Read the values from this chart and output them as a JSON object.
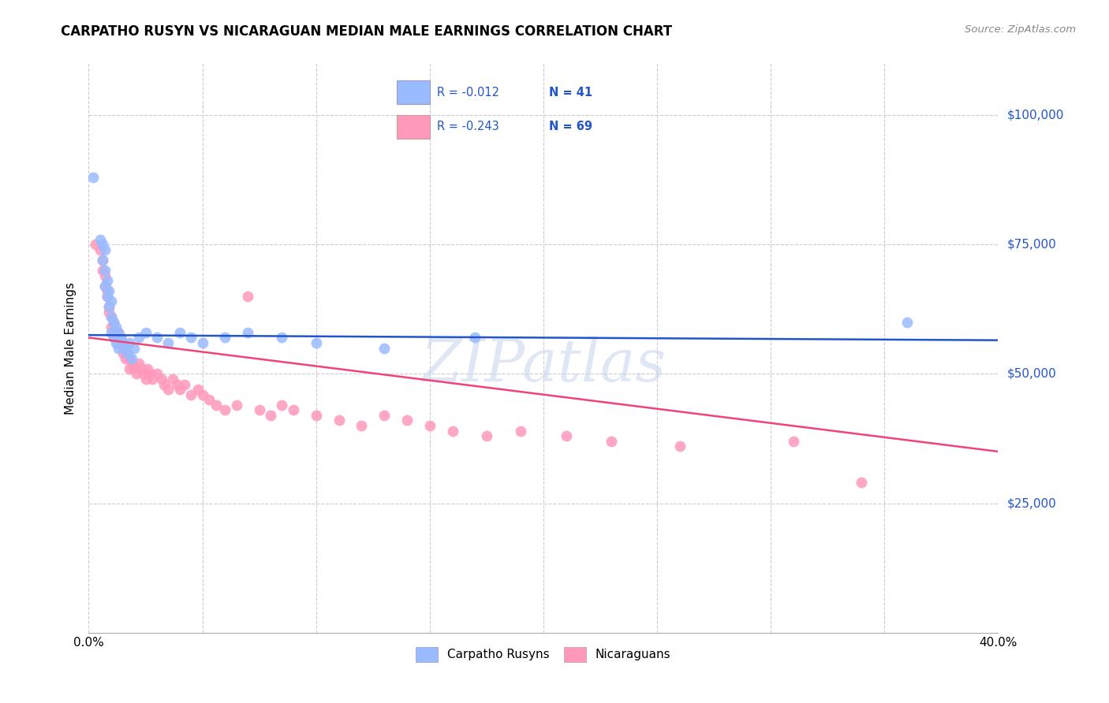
{
  "title": "CARPATHO RUSYN VS NICARAGUAN MEDIAN MALE EARNINGS CORRELATION CHART",
  "source": "Source: ZipAtlas.com",
  "ylabel": "Median Male Earnings",
  "legend_label1": "Carpatho Rusyns",
  "legend_label2": "Nicaraguans",
  "legend_r1": "R = -0.012",
  "legend_n1": "N = 41",
  "legend_r2": "R = -0.243",
  "legend_n2": "N = 69",
  "color_blue": "#99BBFF",
  "color_pink": "#FF99BB",
  "line_blue": "#2255CC",
  "line_pink": "#EE4477",
  "watermark": "ZIPatlas",
  "xmin": 0.0,
  "xmax": 0.4,
  "ymin": 0,
  "ymax": 110000,
  "ytick_vals": [
    25000,
    50000,
    75000,
    100000
  ],
  "ytick_labels": [
    "$25,000",
    "$50,000",
    "$75,000",
    "$100,000"
  ],
  "xtick_vals": [
    0.0,
    0.05,
    0.1,
    0.15,
    0.2,
    0.25,
    0.3,
    0.35,
    0.4
  ],
  "carpatho_x": [
    0.002,
    0.005,
    0.006,
    0.006,
    0.007,
    0.007,
    0.007,
    0.008,
    0.008,
    0.009,
    0.009,
    0.01,
    0.01,
    0.01,
    0.011,
    0.011,
    0.012,
    0.012,
    0.013,
    0.013,
    0.014,
    0.015,
    0.016,
    0.017,
    0.018,
    0.019,
    0.02,
    0.022,
    0.025,
    0.03,
    0.035,
    0.04,
    0.045,
    0.05,
    0.06,
    0.07,
    0.085,
    0.1,
    0.13,
    0.17,
    0.36
  ],
  "carpatho_y": [
    88000,
    76000,
    75000,
    72000,
    74000,
    70000,
    67000,
    68000,
    65000,
    66000,
    63000,
    64000,
    61000,
    58000,
    60000,
    57000,
    59000,
    56000,
    58000,
    55000,
    57000,
    56000,
    55000,
    54000,
    56000,
    53000,
    55000,
    57000,
    58000,
    57000,
    56000,
    58000,
    57000,
    56000,
    57000,
    58000,
    57000,
    56000,
    55000,
    57000,
    60000
  ],
  "nicaraguan_x": [
    0.003,
    0.005,
    0.006,
    0.006,
    0.007,
    0.007,
    0.008,
    0.008,
    0.009,
    0.009,
    0.01,
    0.01,
    0.011,
    0.011,
    0.012,
    0.013,
    0.013,
    0.014,
    0.015,
    0.015,
    0.016,
    0.016,
    0.017,
    0.018,
    0.018,
    0.019,
    0.02,
    0.021,
    0.022,
    0.023,
    0.024,
    0.025,
    0.026,
    0.027,
    0.028,
    0.03,
    0.032,
    0.033,
    0.035,
    0.037,
    0.039,
    0.04,
    0.042,
    0.045,
    0.048,
    0.05,
    0.053,
    0.056,
    0.06,
    0.065,
    0.07,
    0.075,
    0.08,
    0.085,
    0.09,
    0.1,
    0.11,
    0.12,
    0.13,
    0.14,
    0.15,
    0.16,
    0.175,
    0.19,
    0.21,
    0.23,
    0.26,
    0.31,
    0.34
  ],
  "nicaraguan_y": [
    75000,
    74000,
    72000,
    70000,
    69000,
    67000,
    66000,
    65000,
    63000,
    62000,
    61000,
    59000,
    60000,
    58000,
    57000,
    58000,
    56000,
    57000,
    55000,
    54000,
    53000,
    55000,
    54000,
    53000,
    51000,
    52000,
    51000,
    50000,
    52000,
    51000,
    50000,
    49000,
    51000,
    50000,
    49000,
    50000,
    49000,
    48000,
    47000,
    49000,
    48000,
    47000,
    48000,
    46000,
    47000,
    46000,
    45000,
    44000,
    43000,
    44000,
    65000,
    43000,
    42000,
    44000,
    43000,
    42000,
    41000,
    40000,
    42000,
    41000,
    40000,
    39000,
    38000,
    39000,
    38000,
    37000,
    36000,
    37000,
    29000
  ]
}
